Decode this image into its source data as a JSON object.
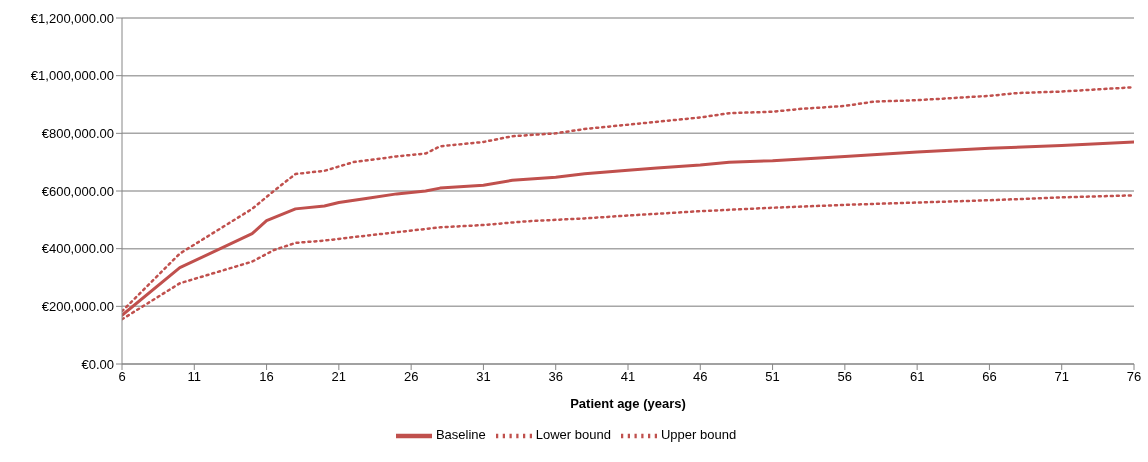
{
  "chart_data": {
    "type": "line",
    "xlabel": "Patient age (years)",
    "xlim": [
      6,
      76
    ],
    "xticks": [
      6,
      11,
      16,
      21,
      26,
      31,
      36,
      41,
      46,
      51,
      56,
      61,
      66,
      71,
      76
    ],
    "ylim": [
      0,
      1200000
    ],
    "yticks": [
      {
        "value": 0,
        "label": "€0.00"
      },
      {
        "value": 200000,
        "label": "€200,000.00"
      },
      {
        "value": 400000,
        "label": "€400,000.00"
      },
      {
        "value": 600000,
        "label": "€600,000.00"
      },
      {
        "value": 800000,
        "label": "€800,000.00"
      },
      {
        "value": 1000000,
        "label": "€1,000,000.00"
      },
      {
        "value": 1200000,
        "label": "€1,200,000.00"
      }
    ],
    "grid": "y",
    "legend": "bottom",
    "marker": "none",
    "series": [
      {
        "name": "Baseline",
        "color": "#c0504d",
        "line_style": "solid",
        "x": [
          6,
          10,
          15,
          16,
          18,
          20,
          21,
          23,
          25,
          27,
          28,
          31,
          33,
          36,
          38,
          41,
          43,
          46,
          48,
          51,
          56,
          61,
          66,
          71,
          76
        ],
        "values": [
          169000,
          334000,
          452000,
          497000,
          538000,
          548000,
          560000,
          575000,
          590000,
          600000,
          610000,
          620000,
          637000,
          648000,
          660000,
          672000,
          680000,
          690000,
          700000,
          705000,
          720000,
          735000,
          748000,
          758000,
          770000
        ]
      },
      {
        "name": "Lower bound",
        "color": "#c0504d",
        "line_style": "dotted",
        "x": [
          6,
          10,
          15,
          16.5,
          18,
          20,
          22,
          28,
          31,
          34,
          38,
          41,
          46,
          51,
          56,
          61,
          66,
          71,
          76
        ],
        "values": [
          155000,
          280000,
          355000,
          395000,
          420000,
          428000,
          440000,
          474000,
          482000,
          495000,
          505000,
          515000,
          530000,
          542000,
          552000,
          560000,
          568000,
          578000,
          585000
        ]
      },
      {
        "name": "Upper bound",
        "color": "#c0504d",
        "line_style": "dotted",
        "x": [
          6,
          10,
          15,
          16.5,
          18,
          20,
          22,
          25,
          27,
          28,
          31,
          33,
          36,
          38,
          41,
          43,
          46,
          48,
          51,
          53,
          56,
          58,
          61,
          66,
          68,
          71,
          76
        ],
        "values": [
          183000,
          383000,
          538000,
          600000,
          659000,
          670000,
          700000,
          720000,
          730000,
          755000,
          770000,
          790000,
          800000,
          815000,
          830000,
          840000,
          855000,
          870000,
          875000,
          885000,
          895000,
          910000,
          915000,
          930000,
          940000,
          945000,
          960000
        ]
      }
    ]
  }
}
